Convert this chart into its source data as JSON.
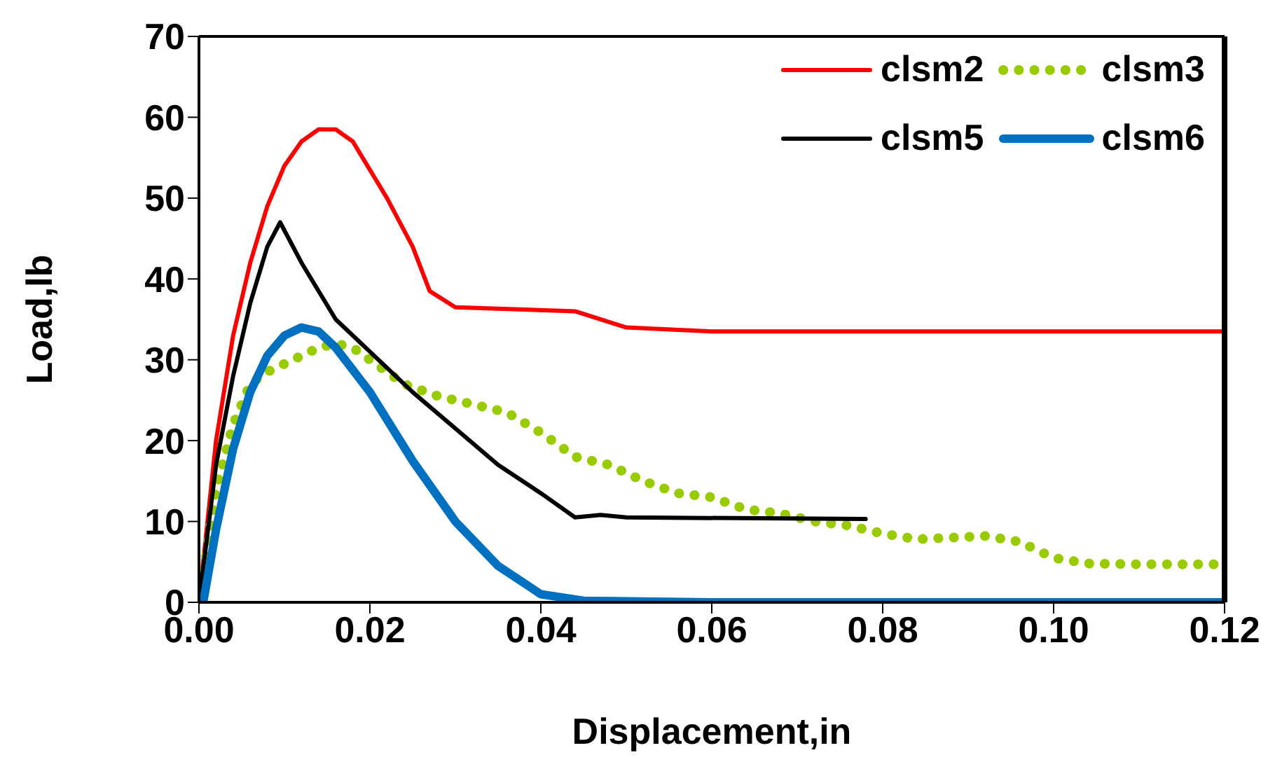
{
  "chart_data": {
    "type": "line",
    "xlabel": "Displacement,in",
    "ylabel": "Load,lb",
    "xlim": [
      0,
      0.12
    ],
    "ylim": [
      0,
      70
    ],
    "xticks": [
      {
        "value": 0,
        "label": "0.00"
      },
      {
        "value": 0.02,
        "label": "0.02"
      },
      {
        "value": 0.04,
        "label": "0.04"
      },
      {
        "value": 0.06,
        "label": "0.06"
      },
      {
        "value": 0.08,
        "label": "0.08"
      },
      {
        "value": 0.1,
        "label": "0.10"
      },
      {
        "value": 0.12,
        "label": "0.12"
      }
    ],
    "yticks": [
      0,
      10,
      20,
      30,
      40,
      50,
      60,
      70
    ],
    "legend": "top right",
    "marker": "none",
    "series": [
      {
        "name": "clsm2",
        "color": "#ff0000",
        "line_style": "solid",
        "x": [
          0,
          0.002,
          0.004,
          0.006,
          0.008,
          0.01,
          0.012,
          0.014,
          0.016,
          0.018,
          0.022,
          0.025,
          0.027,
          0.03,
          0.044,
          0.05,
          0.06,
          0.12
        ],
        "values": [
          0,
          20,
          33,
          42,
          49,
          54,
          57,
          58.5,
          58.5,
          57,
          50,
          44,
          38.5,
          36.5,
          36,
          34,
          33.5,
          33.5
        ]
      },
      {
        "name": "clsm3",
        "color": "#99cc00",
        "line_style": "dotted",
        "x": [
          0,
          0.002,
          0.004,
          0.006,
          0.008,
          0.01,
          0.012,
          0.014,
          0.016,
          0.018,
          0.02,
          0.024,
          0.028,
          0.032,
          0.036,
          0.04,
          0.044,
          0.048,
          0.052,
          0.056,
          0.06,
          0.064,
          0.068,
          0.072,
          0.076,
          0.08,
          0.084,
          0.088,
          0.092,
          0.096,
          0.1,
          0.104,
          0.11,
          0.12
        ],
        "values": [
          0,
          14,
          22,
          27,
          28.5,
          29.5,
          30.5,
          31.5,
          32,
          31.5,
          30,
          27,
          25.5,
          24.5,
          23.5,
          21,
          18,
          17,
          15,
          13.5,
          13,
          11.5,
          11,
          10,
          9.5,
          8.5,
          7.8,
          8,
          8.2,
          7.5,
          5.5,
          4.8,
          4.7,
          4.7
        ]
      },
      {
        "name": "clsm5",
        "color": "#000000",
        "line_style": "solid",
        "x": [
          0,
          0.002,
          0.004,
          0.006,
          0.008,
          0.0095,
          0.012,
          0.016,
          0.02,
          0.025,
          0.03,
          0.035,
          0.04,
          0.044,
          0.047,
          0.05,
          0.078
        ],
        "values": [
          0,
          17,
          28,
          37,
          44,
          47,
          42,
          35,
          31,
          26,
          21.5,
          17,
          13.5,
          10.5,
          10.8,
          10.5,
          10.3
        ]
      },
      {
        "name": "clsm6",
        "color": "#0070c0",
        "line_style": "solid",
        "x": [
          0.0005,
          0.002,
          0.004,
          0.006,
          0.008,
          0.01,
          0.012,
          0.014,
          0.016,
          0.02,
          0.025,
          0.03,
          0.035,
          0.04,
          0.045,
          0.06,
          0.12
        ],
        "values": [
          0,
          9,
          19,
          26,
          30.5,
          33,
          34,
          33.5,
          31.5,
          26,
          17.5,
          10,
          4.5,
          1,
          0.2,
          0,
          0
        ]
      }
    ]
  }
}
